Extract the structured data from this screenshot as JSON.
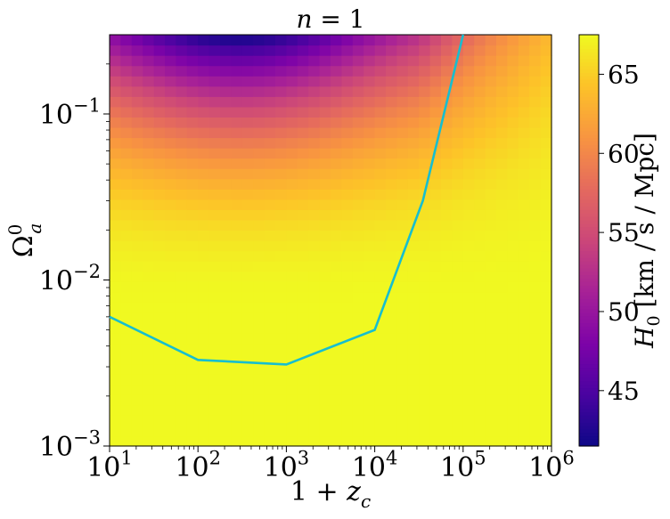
{
  "chart_data": {
    "type": "heatmap",
    "title": "n = 1",
    "xlabel": "1 + z_c",
    "ylabel": "Ω_a^0",
    "colorbar_label": "H_0 [km / s / Mpc]",
    "xscale": "log",
    "yscale": "log",
    "xlim": [
      10,
      1000000
    ],
    "ylim": [
      0.001,
      0.3
    ],
    "clim": [
      41.5,
      67.5
    ],
    "colormap": "plasma",
    "x_ticks": [
      "10^1",
      "10^2",
      "10^3",
      "10^4",
      "10^5",
      "10^6"
    ],
    "y_ticks": [
      "10^-3",
      "10^-2",
      "10^-1"
    ],
    "colorbar_ticks": [
      "45",
      "50",
      "55",
      "60",
      "65"
    ],
    "heatmap": {
      "grid": "log-spaced cells, estimated from image",
      "x_bins": 40,
      "y_bins": 40
    },
    "series": [
      {
        "color": "#17becf",
        "x": [
          10,
          100,
          1000,
          10000,
          35000,
          100000
        ],
        "y": [
          0.006,
          0.0033,
          0.0031,
          0.005,
          0.03,
          0.3
        ]
      }
    ]
  }
}
